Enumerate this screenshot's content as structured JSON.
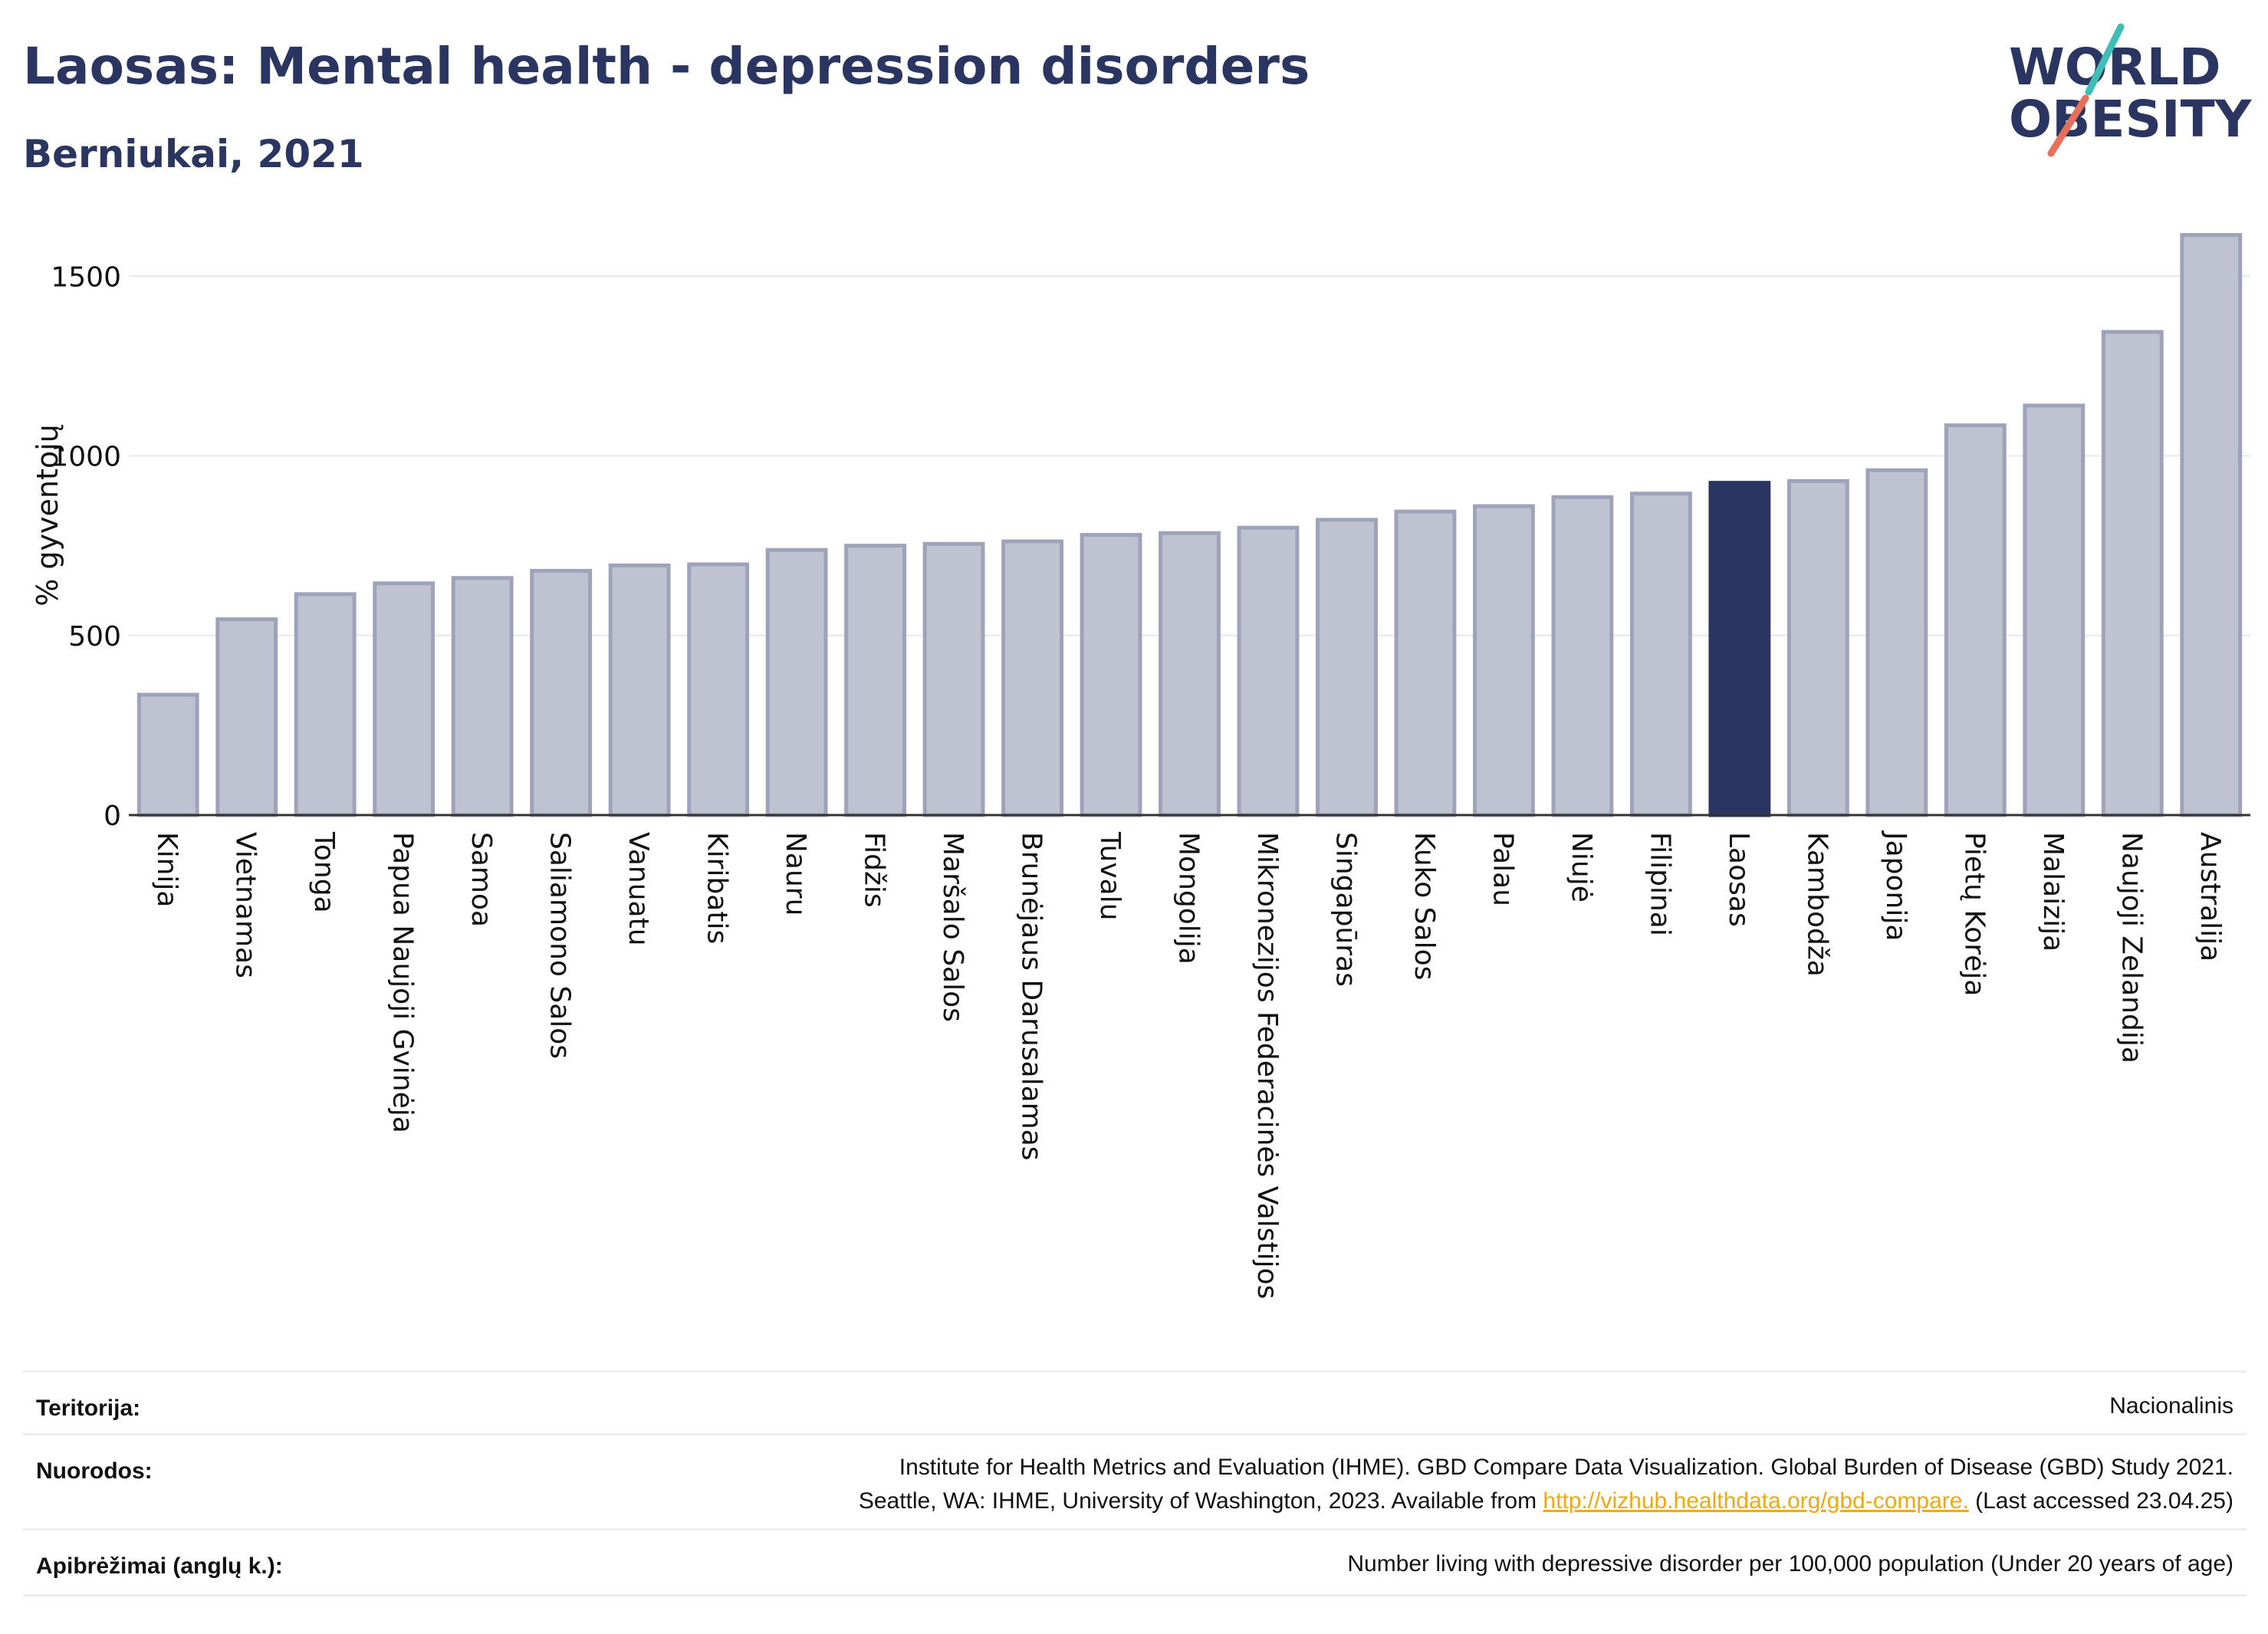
{
  "header": {
    "title": "Laosas: Mental health - depression disorders",
    "subtitle": "Berniukai, 2021"
  },
  "logo": {
    "line1": "WORLD",
    "line2": "OBESITY"
  },
  "colors": {
    "bar_fill": "#bfc3d1",
    "bar_stroke": "#9ea3ba",
    "highlight": "#2b3561",
    "title": "#2b3561",
    "logo_teal": "#3dbfb8",
    "logo_red": "#e8705a"
  },
  "chart_data": {
    "type": "bar",
    "title": "Laosas: Mental health - depression disorders",
    "subtitle": "Berniukai, 2021",
    "ylabel": "% gyventojų",
    "xlabel": "",
    "ylim": [
      0,
      1650
    ],
    "yticks": [
      0,
      500,
      1000,
      1500
    ],
    "grid": true,
    "highlight": "Laosas",
    "categories": [
      "Kinija",
      "Vietnamas",
      "Tonga",
      "Papua Naujoji Gvinėja",
      "Samoa",
      "Saliamono Salos",
      "Vanuatu",
      "Kiribatis",
      "Nauru",
      "Fidžis",
      "Maršalo Salos",
      "Brunėjaus Darusalamas",
      "Tuvalu",
      "Mongolija",
      "Mikronezijos Federacinės Valstijos",
      "Singapūras",
      "Kuko Salos",
      "Palau",
      "Niujė",
      "Filipinai",
      "Laosas",
      "Kambodža",
      "Japonija",
      "Pietų Korėja",
      "Malaizija",
      "Naujoji Zelandija",
      "Australija"
    ],
    "values": [
      335,
      545,
      615,
      645,
      660,
      680,
      695,
      698,
      738,
      750,
      755,
      762,
      780,
      785,
      800,
      822,
      845,
      860,
      885,
      895,
      925,
      930,
      960,
      1085,
      1140,
      1345,
      1615
    ]
  },
  "footer": {
    "territory_label": "Teritorija:",
    "territory_value": "Nacionalinis",
    "refs_label": "Nuorodos:",
    "refs_line1": "Institute for Health Metrics and Evaluation (IHME). GBD Compare Data Visualization. Global Burden of Disease (GBD) Study 2021.",
    "refs_line2_pre": "Seattle, WA: IHME, University of Washington, 2023. Available from ",
    "refs_link": "http://vizhub.healthdata.org/gbd-compare.",
    "refs_line2_post": " (Last accessed 23.04.25)",
    "defs_label": "Apibrėžimai (anglų k.):",
    "defs_value": "Number living with depressive disorder per 100,000 population (Under 20 years of age)"
  }
}
